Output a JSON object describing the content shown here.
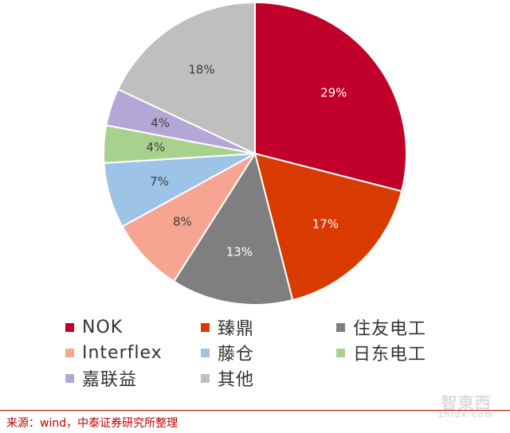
{
  "chart_data": {
    "type": "pie",
    "title": "",
    "slices": [
      {
        "name": "NOK",
        "value": 29,
        "label": "29%",
        "color": "#c0002a"
      },
      {
        "name": "臻鼎",
        "value": 17,
        "label": "17%",
        "color": "#d93a00"
      },
      {
        "name": "住友电工",
        "value": 13,
        "label": "13%",
        "color": "#7f7f7f"
      },
      {
        "name": "Interflex",
        "value": 8,
        "label": "8%",
        "color": "#f7a593"
      },
      {
        "name": "藤仓",
        "value": 7,
        "label": "7%",
        "color": "#9dc3e6"
      },
      {
        "name": "日东电工",
        "value": 4,
        "label": "4%",
        "color": "#a9d18e"
      },
      {
        "name": "嘉联益",
        "value": 4,
        "label": "4%",
        "color": "#b4a7d6"
      },
      {
        "name": "其他",
        "value": 18,
        "label": "18%",
        "color": "#bfbfbf"
      }
    ],
    "start": "12 o'clock",
    "direction": "clockwise",
    "legend_position": "bottom"
  },
  "legend": {
    "items": [
      {
        "label": "NOK",
        "color": "#c0002a"
      },
      {
        "label": "臻鼎",
        "color": "#d93a00"
      },
      {
        "label": "住友电工",
        "color": "#7f7f7f"
      },
      {
        "label": "Interflex",
        "color": "#f7a593"
      },
      {
        "label": "藤仓",
        "color": "#9dc3e6"
      },
      {
        "label": "日东电工",
        "color": "#a9d18e"
      },
      {
        "label": "嘉联益",
        "color": "#b4a7d6"
      },
      {
        "label": "其他",
        "color": "#bfbfbf"
      }
    ]
  },
  "footer": {
    "source": "来源：wind，中泰证券研究所整理",
    "accent_color": "#c00000"
  },
  "watermark": {
    "mark": "智東西",
    "sub": "zhidx.com"
  }
}
